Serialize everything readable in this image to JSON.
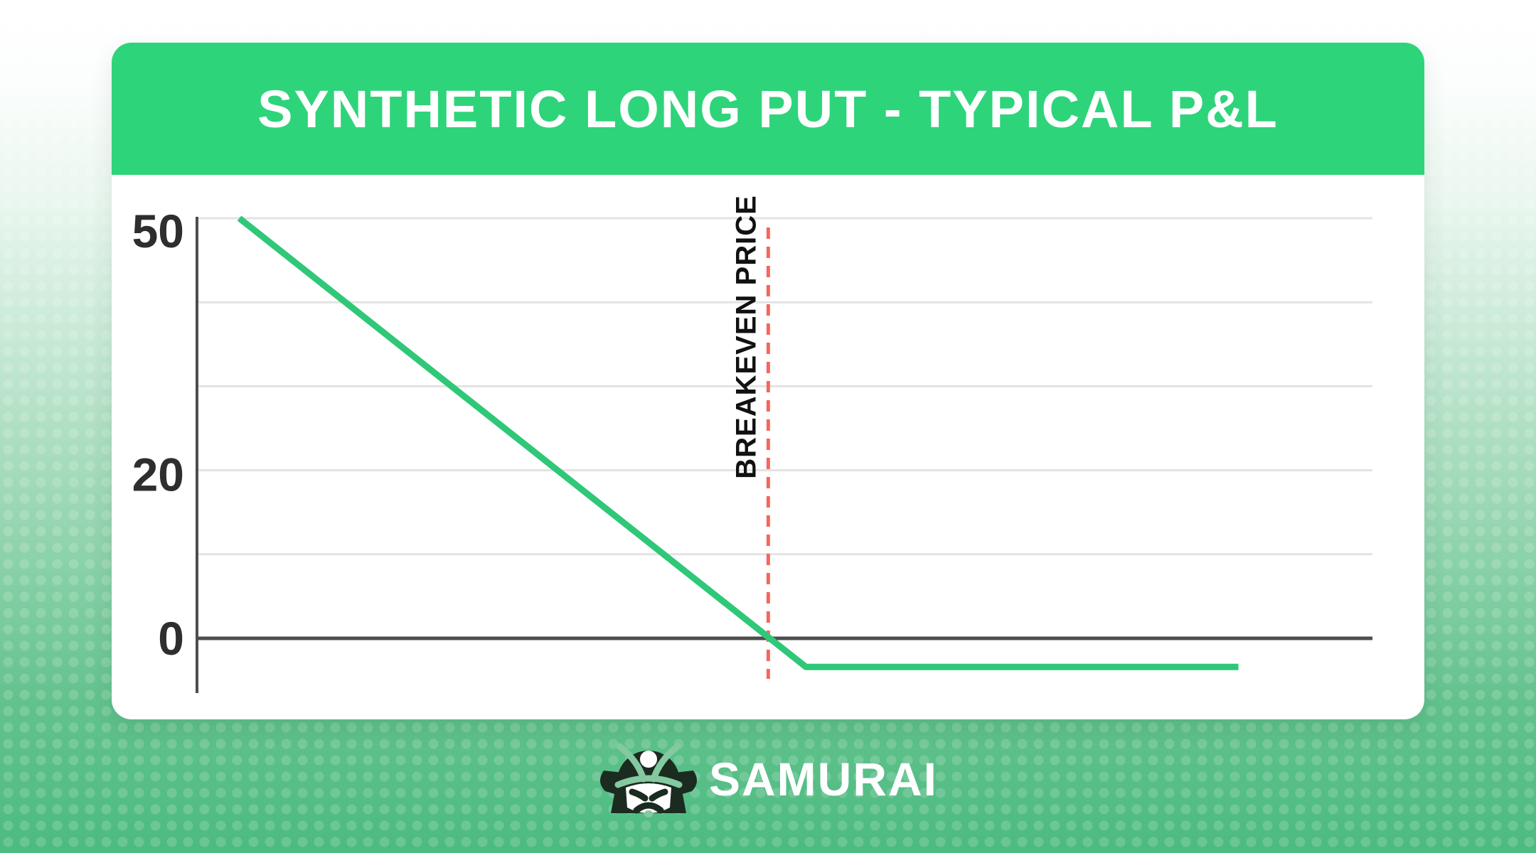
{
  "page": {
    "title": "SYNTHETIC LONG PUT - TYPICAL P&L"
  },
  "brand": {
    "name": "SAMURAI",
    "icon": "samurai-helmet-icon"
  },
  "colors": {
    "brand_green": "#2ed47a",
    "line_green": "#2fc878",
    "breakeven_red": "#f4675d",
    "axis_dark": "#4d4d4d",
    "gridline_gray": "#e3e3e3",
    "label_dark": "#2e2e2e",
    "card_bg": "#ffffff",
    "bg_green": "#4cbb80",
    "logo_dark": "#1b2b20",
    "logo_light_green": "#84c9a0"
  },
  "chart_data": {
    "type": "line",
    "title": "SYNTHETIC LONG PUT - TYPICAL P&L",
    "xlabel": "",
    "ylabel": "",
    "grid": "horizontal",
    "legend": "none",
    "x_axis": {
      "range_pct": [
        0,
        100
      ],
      "tick_labels": []
    },
    "y_axis": {
      "ylim": [
        -6.3,
        51
      ],
      "gridline_values": [
        50,
        40,
        30,
        20,
        10,
        0
      ],
      "labeled_ticks": [
        {
          "value": 50,
          "label": "50"
        },
        {
          "value": 20,
          "label": "20"
        },
        {
          "value": 0,
          "label": "0"
        }
      ]
    },
    "series": [
      {
        "name": "synthetic-long-put-pnl",
        "color": "#2fc878",
        "points_pct_value": [
          {
            "x": 3.6,
            "y": 50
          },
          {
            "x": 51.8,
            "y": -3.4
          },
          {
            "x": 88.6,
            "y": -3.4
          }
        ]
      }
    ],
    "annotations": [
      {
        "type": "vline",
        "x_pct": 48.6,
        "label": "BREAKEVEN PRICE",
        "style": "dashed",
        "color": "#f4675d"
      }
    ]
  }
}
